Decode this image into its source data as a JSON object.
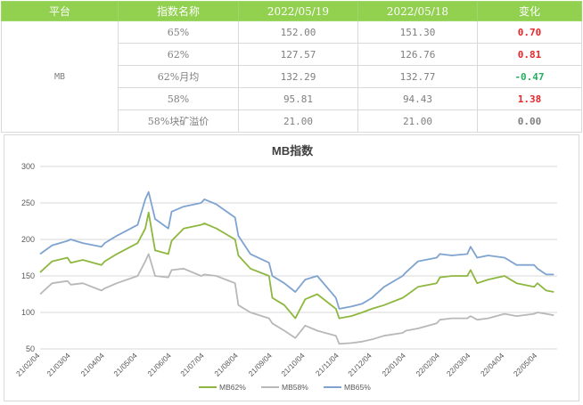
{
  "table": {
    "headers": [
      "平台",
      "指数名称",
      "2022/05/19",
      "2022/05/18",
      "变化"
    ],
    "platform": "MB",
    "rows": [
      {
        "name": "65%",
        "v1": "152.00",
        "v2": "151.30",
        "change": "0.70",
        "dir": "up"
      },
      {
        "name": "62%",
        "v1": "127.57",
        "v2": "126.76",
        "change": "0.81",
        "dir": "up"
      },
      {
        "name": "62%月均",
        "v1": "132.29",
        "v2": "132.77",
        "change": "-0.47",
        "dir": "down"
      },
      {
        "name": "58%",
        "v1": "95.81",
        "v2": "94.43",
        "change": "1.38",
        "dir": "up"
      },
      {
        "name": "58%块矿溢价",
        "v1": "21.00",
        "v2": "21.00",
        "change": "0.00",
        "dir": "flat"
      }
    ],
    "colors": {
      "header_bg": "#92d050",
      "up": "#e8262a",
      "down": "#27ae60"
    }
  },
  "chart_data": {
    "type": "line",
    "title": "MB指数",
    "ylim": [
      50,
      300
    ],
    "yticks": [
      50,
      100,
      150,
      200,
      250,
      300
    ],
    "grid": true,
    "legend_position": "bottom",
    "x_tick_labels": [
      "21/02/04",
      "21/03/04",
      "21/04/04",
      "21/05/04",
      "21/06/04",
      "21/07/04",
      "21/08/04",
      "21/09/04",
      "21/10/04",
      "21/11/04",
      "21/12/04",
      "22/01/04",
      "22/02/04",
      "22/03/04",
      "22/04/04",
      "22/05/04"
    ],
    "x": [
      "21/02/04",
      "21/02/15",
      "21/03/01",
      "21/03/04",
      "21/03/15",
      "21/04/01",
      "21/04/04",
      "21/04/15",
      "21/05/04",
      "21/05/11",
      "21/05/14",
      "21/05/20",
      "21/06/01",
      "21/06/04",
      "21/06/15",
      "21/07/01",
      "21/07/04",
      "21/07/15",
      "21/08/01",
      "21/08/04",
      "21/08/15",
      "21/09/01",
      "21/09/04",
      "21/09/15",
      "21/09/25",
      "21/10/04",
      "21/10/15",
      "21/11/01",
      "21/11/04",
      "21/11/15",
      "21/11/25",
      "21/12/04",
      "21/12/15",
      "22/01/01",
      "22/01/04",
      "22/01/15",
      "22/02/01",
      "22/02/04",
      "22/02/15",
      "22/03/01",
      "22/03/04",
      "22/03/10",
      "22/03/20",
      "22/04/04",
      "22/04/15",
      "22/05/01",
      "22/05/04",
      "22/05/12",
      "22/05/19"
    ],
    "series": [
      {
        "name": "MB62%",
        "color": "#8db73e",
        "values": [
          155,
          170,
          175,
          168,
          172,
          165,
          170,
          180,
          195,
          215,
          237,
          185,
          180,
          198,
          215,
          220,
          222,
          215,
          200,
          178,
          160,
          150,
          120,
          110,
          92,
          118,
          125,
          105,
          92,
          95,
          100,
          105,
          110,
          120,
          123,
          135,
          140,
          148,
          150,
          150,
          158,
          140,
          145,
          150,
          140,
          135,
          140,
          130,
          128
        ]
      },
      {
        "name": "MB58%",
        "color": "#b8b8b8",
        "values": [
          125,
          140,
          143,
          138,
          140,
          130,
          133,
          140,
          150,
          170,
          180,
          150,
          148,
          158,
          160,
          150,
          152,
          150,
          140,
          110,
          100,
          92,
          85,
          75,
          65,
          82,
          75,
          68,
          57,
          58,
          60,
          63,
          68,
          72,
          75,
          78,
          85,
          90,
          92,
          92,
          95,
          90,
          92,
          98,
          95,
          98,
          100,
          98,
          96
        ]
      },
      {
        "name": "MB65%",
        "color": "#7fa3d0",
        "values": [
          180,
          192,
          198,
          200,
          195,
          190,
          195,
          205,
          220,
          255,
          265,
          228,
          215,
          238,
          245,
          250,
          255,
          248,
          230,
          205,
          180,
          168,
          150,
          140,
          128,
          145,
          150,
          120,
          105,
          108,
          112,
          120,
          135,
          150,
          155,
          170,
          175,
          180,
          178,
          180,
          190,
          175,
          178,
          175,
          165,
          165,
          160,
          152,
          152
        ]
      }
    ]
  }
}
